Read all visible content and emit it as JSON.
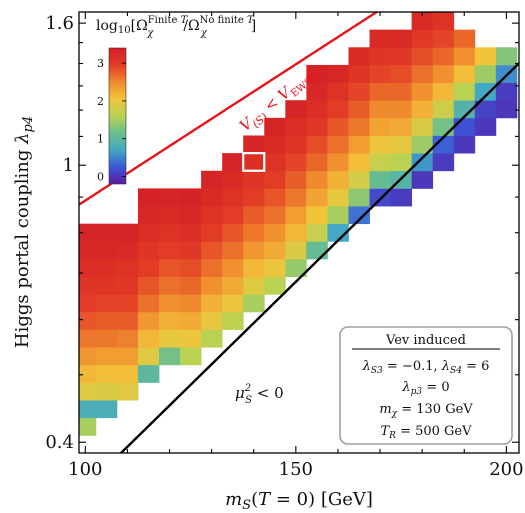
{
  "chart_data": {
    "type": "heatmap",
    "xlabel": "m_S(T = 0) [GeV]",
    "ylabel": "Higgs portal coupling λ_p4",
    "xlim": [
      98.5,
      203
    ],
    "ylim": [
      0.386,
      1.66
    ],
    "yscale": "log",
    "xticks": [
      100,
      150,
      200
    ],
    "yticks": [
      {
        "value": 0.4,
        "label": "0.4"
      },
      {
        "value": 1,
        "label": "1"
      },
      {
        "value": 1.6,
        "label": "1.6"
      }
    ],
    "cell_dx_gev": 5,
    "cell_rows": 25,
    "colorbar": {
      "title": "log10[Ω_χ^Finite T / Ω_χ^No finite T]",
      "ticks": [
        0,
        1,
        2,
        3
      ],
      "range": [
        -0.2,
        3.4
      ],
      "colormap": [
        "#5b1a9e",
        "#3b57d8",
        "#42a8c4",
        "#6bbe8c",
        "#b9d253",
        "#f2c43b",
        "#f08a2e",
        "#e23b26",
        "#d21f26"
      ]
    },
    "columns": [
      {
        "x": 100,
        "values": [
          1.5,
          0.8,
          1.9,
          2.15,
          2.4,
          2.6,
          2.8,
          2.95,
          3.05,
          3.15,
          3.25,
          3.3
        ]
      },
      {
        "x": 105,
        "values": [
          0.8,
          1.85,
          2.1,
          2.35,
          2.6,
          2.75,
          2.9,
          3.05,
          3.15,
          3.25,
          3.3
        ]
      },
      {
        "x": 110,
        "values": [
          1.9,
          2.1,
          2.35,
          2.55,
          2.75,
          2.9,
          3.0,
          3.1,
          3.2,
          3.3
        ]
      },
      {
        "x": 115,
        "values": [
          1.0,
          1.9,
          2.15,
          2.4,
          2.65,
          2.8,
          2.95,
          3.05,
          3.15,
          3.25,
          3.35
        ]
      },
      {
        "x": 120,
        "values": [
          1.2,
          1.95,
          2.2,
          2.45,
          2.65,
          2.8,
          2.95,
          3.1,
          3.2,
          3.3
        ]
      },
      {
        "x": 125,
        "values": [
          1.6,
          2.0,
          2.25,
          2.5,
          2.7,
          2.85,
          3.0,
          3.15,
          3.25,
          3.35
        ]
      },
      {
        "x": 130,
        "values": [
          1.6,
          1.95,
          2.2,
          2.45,
          2.65,
          2.8,
          2.95,
          3.1,
          3.2,
          3.3
        ]
      },
      {
        "x": 135,
        "values": [
          1.65,
          2.0,
          2.25,
          2.45,
          2.65,
          2.8,
          2.95,
          3.1,
          3.2,
          3.3
        ]
      },
      {
        "x": 140,
        "values": [
          1.5,
          1.9,
          2.15,
          2.4,
          2.6,
          2.75,
          2.95,
          3.05,
          3.15,
          3.3
        ]
      },
      {
        "x": 145,
        "values": [
          1.6,
          2.0,
          2.25,
          2.45,
          2.65,
          2.8,
          2.95,
          3.1,
          3.2,
          3.3
        ]
      },
      {
        "x": 150,
        "values": [
          1.4,
          1.85,
          2.15,
          2.35,
          2.6,
          2.75,
          2.9,
          3.05,
          3.15,
          3.3
        ]
      },
      {
        "x": 155,
        "values": [
          1.1,
          1.7,
          2.05,
          2.3,
          2.5,
          2.7,
          2.85,
          3.0,
          3.15,
          3.25,
          3.35
        ]
      },
      {
        "x": 160,
        "values": [
          0.7,
          1.5,
          1.95,
          2.2,
          2.45,
          2.65,
          2.8,
          2.95,
          3.1,
          3.25
        ]
      },
      {
        "x": 165,
        "values": [
          0.4,
          1.35,
          1.8,
          2.1,
          2.35,
          2.6,
          2.75,
          2.9,
          3.05,
          3.2
        ]
      },
      {
        "x": 170,
        "values": [
          0.15,
          1.1,
          1.7,
          2.0,
          2.3,
          2.5,
          2.7,
          2.9,
          3.05,
          3.2
        ]
      },
      {
        "x": 175,
        "values": [
          0.05,
          0.95,
          1.6,
          1.95,
          2.25,
          2.5,
          2.7,
          2.85,
          3.0,
          3.2
        ]
      },
      {
        "x": 180,
        "values": [
          0.02,
          0.6,
          1.45,
          1.85,
          2.2,
          2.45,
          2.65,
          2.85,
          3.0,
          3.2
        ]
      },
      {
        "x": 185,
        "values": [
          0.05,
          0.3,
          1.2,
          1.75,
          2.15,
          2.45,
          2.7,
          2.9,
          3.1
        ]
      },
      {
        "x": 190,
        "values": [
          0.02,
          0.2,
          0.9,
          1.6,
          2.1,
          2.45,
          2.7
        ]
      },
      {
        "x": 195,
        "values": [
          0.02,
          0.1,
          0.7,
          1.45,
          2.05
        ]
      },
      {
        "x": 200,
        "values": [
          0.02,
          0.05,
          0.55,
          1.3
        ]
      }
    ],
    "highlighted_cell": {
      "x": 140,
      "y": 0.99
    },
    "curves": [
      {
        "name": "V(S) < V_EWSB",
        "color": "#e8141b"
      },
      {
        "name": "μ_S^2 < 0",
        "color": "#000000"
      }
    ],
    "annotations": {
      "region_upper": "V(S) < V_EWSB",
      "region_lower": "μ_S^2 < 0"
    },
    "info_box": {
      "title": "Vev induced",
      "lines": [
        "λ_S3 = −0.1, λ_S4 = 6",
        "λ_p3 = 0",
        "m_χ = 130 GeV",
        "T_R = 500 GeV"
      ]
    }
  }
}
